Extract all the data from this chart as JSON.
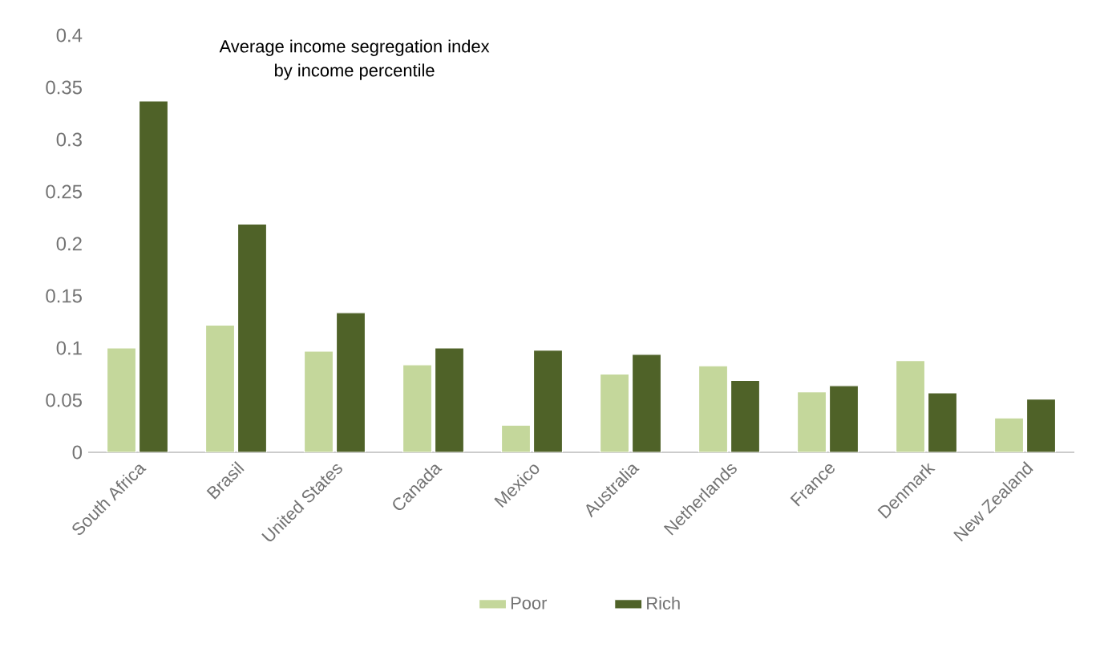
{
  "chart_data": {
    "type": "bar",
    "title": "Average income segregation index\nby income percentile",
    "categories": [
      "South Africa",
      "Brasil",
      "United States",
      "Canada",
      "Mexico",
      "Australia",
      "Netherlands",
      "France",
      "Denmark",
      "New Zealand"
    ],
    "series": [
      {
        "name": "Poor",
        "color": "#c4d79b",
        "values": [
          0.1,
          0.122,
          0.097,
          0.084,
          0.026,
          0.075,
          0.083,
          0.058,
          0.088,
          0.033
        ]
      },
      {
        "name": "Rich",
        "color": "#4f6228",
        "values": [
          0.337,
          0.219,
          0.134,
          0.1,
          0.098,
          0.094,
          0.069,
          0.064,
          0.057,
          0.051
        ]
      }
    ],
    "ylim": [
      0,
      0.4
    ],
    "yticks": [
      0,
      0.05,
      0.1,
      0.15,
      0.2,
      0.25,
      0.3,
      0.35,
      0.4
    ],
    "legend": "bottom"
  }
}
